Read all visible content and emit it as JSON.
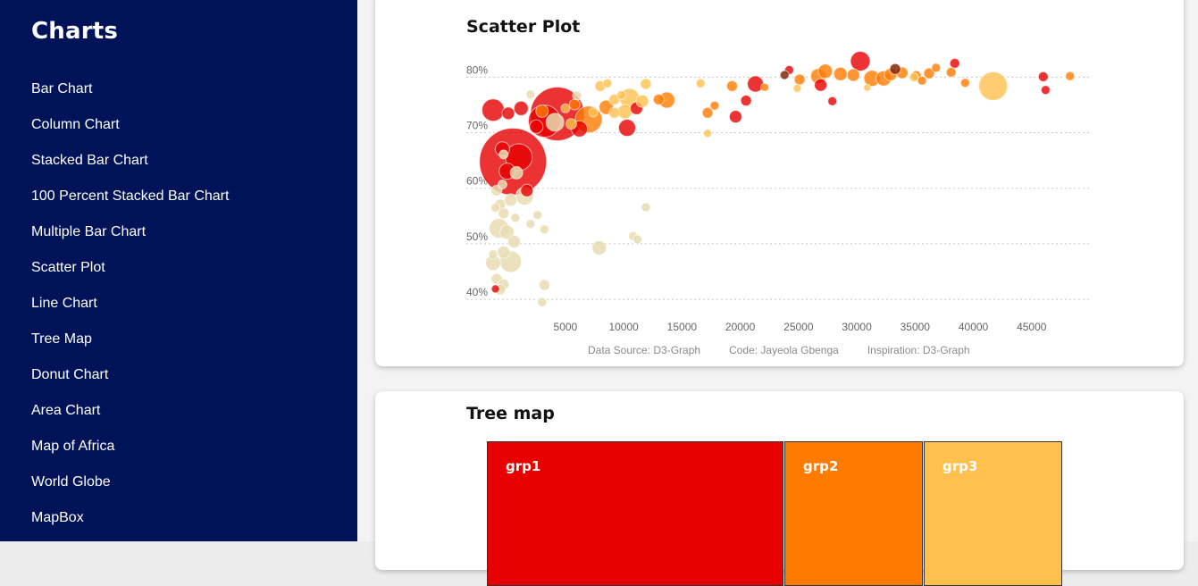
{
  "sidebar": {
    "title": "Charts",
    "items": [
      "Bar Chart",
      "Column Chart",
      "Stacked Bar Chart",
      "100 Percent Stacked Bar Chart",
      "Multiple Bar Chart",
      "Scatter Plot",
      "Line Chart",
      "Tree Map",
      "Donut Chart",
      "Area Chart",
      "Map of Africa",
      "World Globe",
      "MapBox"
    ]
  },
  "scatter_card": {
    "title": "Scatter Plot",
    "credits": {
      "source": "Data Source: D3-Graph",
      "code": "Code: Jayeola Gbenga",
      "inspiration": "Inspiration: D3-Graph"
    }
  },
  "treemap_card": {
    "title": "Tree map",
    "groups": [
      {
        "name": "grp1",
        "color": "#e60000"
      },
      {
        "name": "grp2",
        "color": "#ff7b00"
      },
      {
        "name": "grp3",
        "color": "#ffc04d"
      }
    ]
  },
  "colors": {
    "sidebar_bg": "#001359",
    "red": "#e60000",
    "orange": "#ff7b00",
    "gold": "#ffc04d",
    "beige": "#e8dcb0",
    "maroon": "#7a1a00"
  },
  "chart_data": [
    {
      "type": "scatter",
      "title": "Scatter Plot",
      "xlabel": "",
      "ylabel": "",
      "xlim": [
        -3500,
        50000
      ],
      "ylim": [
        38,
        84
      ],
      "x_ticks": [
        5000,
        10000,
        15000,
        20000,
        25000,
        30000,
        35000,
        40000,
        45000
      ],
      "y_ticks": [
        40,
        50,
        60,
        70,
        80
      ],
      "y_tick_labels": [
        "40%",
        "50%",
        "60%",
        "70%",
        "80%"
      ],
      "grid": "horizontal dotted",
      "points": [
        {
          "x": 4300,
          "y": 73.3,
          "s": 60,
          "c": "red"
        },
        {
          "x": 500,
          "y": 64.7,
          "s": 75,
          "c": "red"
        },
        {
          "x": 1000,
          "y": 65.5,
          "s": 30,
          "c": "red"
        },
        {
          "x": 3200,
          "y": 72,
          "s": 36,
          "c": "red"
        },
        {
          "x": -1200,
          "y": 74,
          "s": 25,
          "c": "red"
        },
        {
          "x": -400,
          "y": 67,
          "s": 16,
          "c": "red"
        },
        {
          "x": 0,
          "y": 63,
          "s": 18,
          "c": "red"
        },
        {
          "x": 1200,
          "y": 74.3,
          "s": 16,
          "c": "red"
        },
        {
          "x": 2500,
          "y": 71,
          "s": 15,
          "c": "red"
        },
        {
          "x": 1700,
          "y": 59.5,
          "s": 14,
          "c": "red"
        },
        {
          "x": 6200,
          "y": 70.6,
          "s": 18,
          "c": "red"
        },
        {
          "x": 10300,
          "y": 70.8,
          "s": 19,
          "c": "red"
        },
        {
          "x": 11100,
          "y": 74.3,
          "s": 14,
          "c": "red"
        },
        {
          "x": 19600,
          "y": 72.8,
          "s": 14,
          "c": "red"
        },
        {
          "x": 20500,
          "y": 75.7,
          "s": 12,
          "c": "red"
        },
        {
          "x": 21300,
          "y": 78.7,
          "s": 18,
          "c": "red"
        },
        {
          "x": 24200,
          "y": 81.2,
          "s": 10,
          "c": "red"
        },
        {
          "x": 26900,
          "y": 78.5,
          "s": 14,
          "c": "red"
        },
        {
          "x": 27900,
          "y": 75.6,
          "s": 10,
          "c": "red"
        },
        {
          "x": 30300,
          "y": 82.8,
          "s": 22,
          "c": "red"
        },
        {
          "x": 38400,
          "y": 82.4,
          "s": 11,
          "c": "red"
        },
        {
          "x": 46000,
          "y": 80,
          "s": 11,
          "c": "red"
        },
        {
          "x": 46200,
          "y": 77.6,
          "s": 10,
          "c": "red"
        },
        {
          "x": -1000,
          "y": 41.8,
          "s": 9,
          "c": "red"
        },
        {
          "x": 100,
          "y": 73.4,
          "s": 14,
          "c": "red"
        },
        {
          "x": 23800,
          "y": 80.3,
          "s": 10,
          "c": "maroon"
        },
        {
          "x": 33300,
          "y": 81.4,
          "s": 12,
          "c": "maroon"
        },
        {
          "x": 7000,
          "y": 72.3,
          "s": 30,
          "c": "orange"
        },
        {
          "x": 8500,
          "y": 74.5,
          "s": 16,
          "c": "orange"
        },
        {
          "x": 13700,
          "y": 75.8,
          "s": 18,
          "c": "orange"
        },
        {
          "x": 13000,
          "y": 75.9,
          "s": 12,
          "c": "orange"
        },
        {
          "x": 17200,
          "y": 73.5,
          "s": 12,
          "c": "orange"
        },
        {
          "x": 17800,
          "y": 74.8,
          "s": 10,
          "c": "orange"
        },
        {
          "x": 19300,
          "y": 78.3,
          "s": 12,
          "c": "orange"
        },
        {
          "x": 22100,
          "y": 78.1,
          "s": 9,
          "c": "orange"
        },
        {
          "x": 25100,
          "y": 79.5,
          "s": 12,
          "c": "orange"
        },
        {
          "x": 26700,
          "y": 80.1,
          "s": 17,
          "c": "orange"
        },
        {
          "x": 27300,
          "y": 81,
          "s": 16,
          "c": "orange"
        },
        {
          "x": 28600,
          "y": 80.5,
          "s": 15,
          "c": "orange"
        },
        {
          "x": 29700,
          "y": 80.3,
          "s": 14,
          "c": "orange"
        },
        {
          "x": 31300,
          "y": 79.7,
          "s": 18,
          "c": "orange"
        },
        {
          "x": 32300,
          "y": 79.7,
          "s": 17,
          "c": "orange"
        },
        {
          "x": 32900,
          "y": 80.4,
          "s": 14,
          "c": "orange"
        },
        {
          "x": 33900,
          "y": 80.7,
          "s": 13,
          "c": "orange"
        },
        {
          "x": 35100,
          "y": 80.2,
          "s": 11,
          "c": "orange"
        },
        {
          "x": 35600,
          "y": 79.3,
          "s": 10,
          "c": "orange"
        },
        {
          "x": 36200,
          "y": 80.6,
          "s": 12,
          "c": "orange"
        },
        {
          "x": 36800,
          "y": 81.6,
          "s": 10,
          "c": "orange"
        },
        {
          "x": 38100,
          "y": 80.8,
          "s": 11,
          "c": "orange"
        },
        {
          "x": 39300,
          "y": 78.9,
          "s": 10,
          "c": "orange"
        },
        {
          "x": 48300,
          "y": 80.1,
          "s": 10,
          "c": "orange"
        },
        {
          "x": 5800,
          "y": 75,
          "s": 12,
          "c": "orange"
        },
        {
          "x": 3000,
          "y": 73.8,
          "s": 14,
          "c": "orange"
        },
        {
          "x": 41700,
          "y": 78.3,
          "s": 32,
          "c": "gold"
        },
        {
          "x": 10500,
          "y": 76.1,
          "s": 22,
          "c": "gold"
        },
        {
          "x": 11900,
          "y": 78.7,
          "s": 12,
          "c": "gold"
        },
        {
          "x": 11600,
          "y": 75.6,
          "s": 14,
          "c": "gold"
        },
        {
          "x": 10100,
          "y": 73.7,
          "s": 16,
          "c": "gold"
        },
        {
          "x": 9200,
          "y": 73.5,
          "s": 12,
          "c": "gold"
        },
        {
          "x": 8000,
          "y": 78.3,
          "s": 12,
          "c": "gold"
        },
        {
          "x": 8600,
          "y": 78.8,
          "s": 10,
          "c": "gold"
        },
        {
          "x": 9200,
          "y": 75.9,
          "s": 12,
          "c": "gold"
        },
        {
          "x": 9800,
          "y": 76.7,
          "s": 10,
          "c": "gold"
        },
        {
          "x": 16600,
          "y": 78.8,
          "s": 10,
          "c": "gold"
        },
        {
          "x": 24900,
          "y": 77.9,
          "s": 9,
          "c": "gold"
        },
        {
          "x": 30900,
          "y": 78,
          "s": 8,
          "c": "gold"
        },
        {
          "x": 5000,
          "y": 74.3,
          "s": 10,
          "c": "gold"
        },
        {
          "x": 5500,
          "y": 71.5,
          "s": 12,
          "c": "gold"
        },
        {
          "x": 7400,
          "y": 73.6,
          "s": 10,
          "c": "gold"
        },
        {
          "x": 34900,
          "y": 79.9,
          "s": 10,
          "c": "gold"
        },
        {
          "x": 17200,
          "y": 69.8,
          "s": 9,
          "c": "gold"
        },
        {
          "x": -1200,
          "y": 46.5,
          "s": 17,
          "c": "beige"
        },
        {
          "x": 300,
          "y": 46.7,
          "s": 24,
          "c": "beige"
        },
        {
          "x": -700,
          "y": 52.7,
          "s": 22,
          "c": "beige"
        },
        {
          "x": 0,
          "y": 52,
          "s": 16,
          "c": "beige"
        },
        {
          "x": -300,
          "y": 48.4,
          "s": 14,
          "c": "beige"
        },
        {
          "x": 600,
          "y": 50.3,
          "s": 14,
          "c": "beige"
        },
        {
          "x": -900,
          "y": 43.6,
          "s": 12,
          "c": "beige"
        },
        {
          "x": -300,
          "y": 42.6,
          "s": 12,
          "c": "beige"
        },
        {
          "x": -600,
          "y": 41.7,
          "s": 12,
          "c": "beige"
        },
        {
          "x": 300,
          "y": 57.8,
          "s": 14,
          "c": "beige"
        },
        {
          "x": -600,
          "y": 57,
          "s": 12,
          "c": "beige"
        },
        {
          "x": -300,
          "y": 55.4,
          "s": 12,
          "c": "beige"
        },
        {
          "x": 700,
          "y": 54.6,
          "s": 10,
          "c": "beige"
        },
        {
          "x": 1500,
          "y": 58.5,
          "s": 20,
          "c": "beige"
        },
        {
          "x": -900,
          "y": 59.5,
          "s": 12,
          "c": "beige"
        },
        {
          "x": -1000,
          "y": 56.4,
          "s": 10,
          "c": "beige"
        },
        {
          "x": -400,
          "y": 60.6,
          "s": 10,
          "c": "beige"
        },
        {
          "x": 2000,
          "y": 53.5,
          "s": 10,
          "c": "beige"
        },
        {
          "x": 2600,
          "y": 55.1,
          "s": 10,
          "c": "beige"
        },
        {
          "x": 3200,
          "y": 52.5,
          "s": 10,
          "c": "beige"
        },
        {
          "x": 3200,
          "y": 42.5,
          "s": 12,
          "c": "beige"
        },
        {
          "x": 3000,
          "y": 39.4,
          "s": 10,
          "c": "beige"
        },
        {
          "x": 7900,
          "y": 49.2,
          "s": 16,
          "c": "beige"
        },
        {
          "x": 10800,
          "y": 51.3,
          "s": 10,
          "c": "beige"
        },
        {
          "x": 11200,
          "y": 50.7,
          "s": 10,
          "c": "beige"
        },
        {
          "x": 11900,
          "y": 56.5,
          "s": 10,
          "c": "beige"
        },
        {
          "x": -300,
          "y": 66,
          "s": 10,
          "c": "beige"
        },
        {
          "x": 800,
          "y": 62.7,
          "s": 14,
          "c": "beige"
        },
        {
          "x": -1200,
          "y": 48,
          "s": 10,
          "c": "beige"
        },
        {
          "x": 4100,
          "y": 71.8,
          "s": 20,
          "c": "beige"
        },
        {
          "x": 6000,
          "y": 76.6,
          "s": 10,
          "c": "beige"
        },
        {
          "x": 2000,
          "y": 76.8,
          "s": 10,
          "c": "beige"
        }
      ]
    },
    {
      "type": "treemap",
      "title": "Tree map",
      "categories": [
        "grp1",
        "grp2",
        "grp3"
      ],
      "values": [
        53,
        24,
        23
      ]
    }
  ]
}
